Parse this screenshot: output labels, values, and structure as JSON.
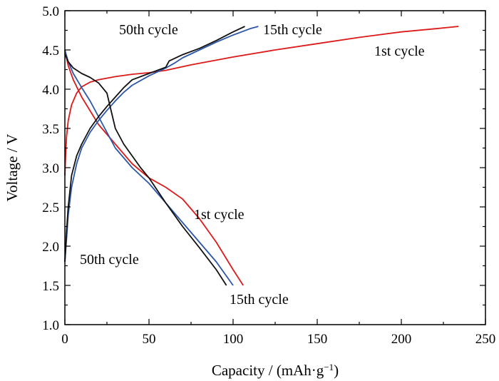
{
  "chart_data": {
    "type": "line",
    "title": "",
    "xlabel": "Capacity / (mAh·g",
    "xlabel_sup": "−1",
    "xlabel_close": ")",
    "ylabel": "Voltage / V",
    "xlim": [
      0,
      250
    ],
    "ylim": [
      1.0,
      5.0
    ],
    "grid": false,
    "legend": "none",
    "x_ticks": [
      "0",
      "50",
      "100",
      "150",
      "200",
      "250"
    ],
    "y_ticks": [
      "1.0",
      "1.5",
      "2.0",
      "2.5",
      "3.0",
      "3.5",
      "4.0",
      "4.5",
      "5.0"
    ],
    "series": [
      {
        "key": "1st-charge",
        "color": "#dd1a1a",
        "points": [
          [
            0,
            2.9
          ],
          [
            0.5,
            3.2
          ],
          [
            1,
            3.4
          ],
          [
            2,
            3.6
          ],
          [
            4,
            3.8
          ],
          [
            7,
            3.95
          ],
          [
            10,
            4.03
          ],
          [
            15,
            4.09
          ],
          [
            20,
            4.12
          ],
          [
            30,
            4.16
          ],
          [
            40,
            4.19
          ],
          [
            50,
            4.21
          ],
          [
            60,
            4.24
          ],
          [
            75,
            4.31
          ],
          [
            100,
            4.41
          ],
          [
            125,
            4.5
          ],
          [
            150,
            4.58
          ],
          [
            175,
            4.66
          ],
          [
            200,
            4.73
          ],
          [
            220,
            4.77
          ],
          [
            234,
            4.8
          ]
        ]
      },
      {
        "key": "1st-discharge",
        "color": "#dd1a1a",
        "points": [
          [
            0,
            4.5
          ],
          [
            2,
            4.3
          ],
          [
            5,
            4.12
          ],
          [
            10,
            3.9
          ],
          [
            20,
            3.55
          ],
          [
            30,
            3.3
          ],
          [
            40,
            3.05
          ],
          [
            50,
            2.87
          ],
          [
            60,
            2.75
          ],
          [
            70,
            2.6
          ],
          [
            80,
            2.35
          ],
          [
            90,
            2.05
          ],
          [
            100,
            1.7
          ],
          [
            106,
            1.5
          ]
        ]
      },
      {
        "key": "15th-charge",
        "color": "#2b57a6",
        "points": [
          [
            0,
            1.8
          ],
          [
            1,
            2.1
          ],
          [
            2,
            2.4
          ],
          [
            4,
            2.75
          ],
          [
            7,
            3.05
          ],
          [
            10,
            3.25
          ],
          [
            15,
            3.45
          ],
          [
            20,
            3.6
          ],
          [
            25,
            3.73
          ],
          [
            30,
            3.85
          ],
          [
            35,
            3.96
          ],
          [
            40,
            4.05
          ],
          [
            50,
            4.17
          ],
          [
            60,
            4.27
          ],
          [
            65,
            4.33
          ],
          [
            70,
            4.4
          ],
          [
            80,
            4.5
          ],
          [
            90,
            4.6
          ],
          [
            100,
            4.69
          ],
          [
            110,
            4.77
          ],
          [
            115,
            4.8
          ]
        ]
      },
      {
        "key": "15th-discharge",
        "color": "#2b57a6",
        "points": [
          [
            0,
            4.5
          ],
          [
            2,
            4.35
          ],
          [
            5,
            4.2
          ],
          [
            10,
            4.02
          ],
          [
            15,
            3.85
          ],
          [
            20,
            3.65
          ],
          [
            25,
            3.45
          ],
          [
            30,
            3.25
          ],
          [
            40,
            3.0
          ],
          [
            50,
            2.8
          ],
          [
            60,
            2.55
          ],
          [
            70,
            2.3
          ],
          [
            80,
            2.05
          ],
          [
            90,
            1.8
          ],
          [
            100,
            1.5
          ]
        ]
      },
      {
        "key": "50th-charge",
        "color": "#111111",
        "points": [
          [
            0,
            1.8
          ],
          [
            1,
            2.2
          ],
          [
            2,
            2.5
          ],
          [
            4,
            2.9
          ],
          [
            7,
            3.15
          ],
          [
            10,
            3.3
          ],
          [
            15,
            3.5
          ],
          [
            20,
            3.65
          ],
          [
            25,
            3.78
          ],
          [
            30,
            3.9
          ],
          [
            35,
            4.02
          ],
          [
            40,
            4.12
          ],
          [
            50,
            4.2
          ],
          [
            60,
            4.28
          ],
          [
            62,
            4.36
          ],
          [
            70,
            4.44
          ],
          [
            80,
            4.52
          ],
          [
            90,
            4.62
          ],
          [
            100,
            4.73
          ],
          [
            107,
            4.8
          ]
        ]
      },
      {
        "key": "50th-discharge",
        "color": "#111111",
        "points": [
          [
            0,
            4.45
          ],
          [
            2,
            4.35
          ],
          [
            5,
            4.27
          ],
          [
            10,
            4.2
          ],
          [
            15,
            4.15
          ],
          [
            20,
            4.08
          ],
          [
            25,
            3.95
          ],
          [
            30,
            3.5
          ],
          [
            35,
            3.3
          ],
          [
            40,
            3.15
          ],
          [
            45,
            3.0
          ],
          [
            50,
            2.87
          ],
          [
            60,
            2.55
          ],
          [
            70,
            2.25
          ],
          [
            80,
            1.98
          ],
          [
            90,
            1.7
          ],
          [
            96,
            1.5
          ]
        ]
      }
    ],
    "annotations": [
      {
        "key": "a-50th-top",
        "text": "50th cycle"
      },
      {
        "key": "a-15th-top",
        "text": "15th cycle"
      },
      {
        "key": "a-1st-top",
        "text": "1st cycle"
      },
      {
        "key": "a-1st-mid",
        "text": "1st cycle"
      },
      {
        "key": "a-50th-low",
        "text": "50th cycle"
      },
      {
        "key": "a-15th-low",
        "text": "15th cycle"
      }
    ]
  }
}
